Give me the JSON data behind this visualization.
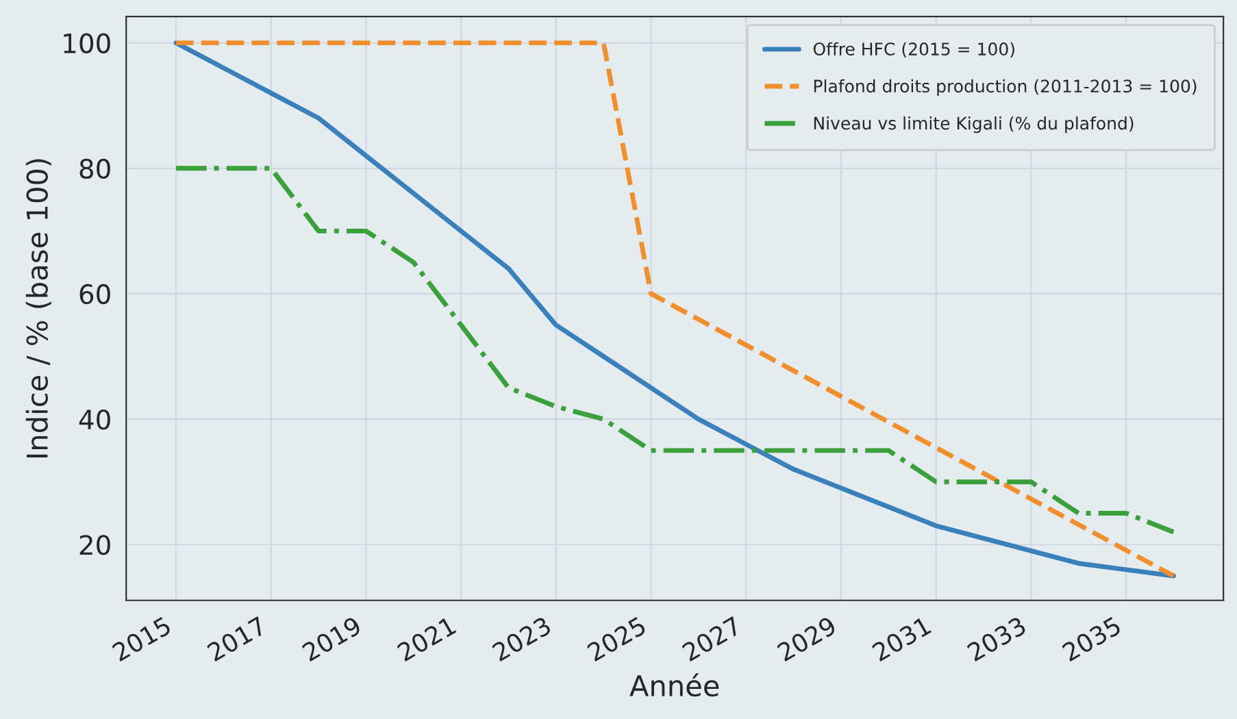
{
  "chart_data": {
    "type": "line",
    "xlabel": "Année",
    "ylabel": "Indice / % (base 100)",
    "x": [
      2015,
      2016,
      2017,
      2018,
      2019,
      2020,
      2021,
      2022,
      2023,
      2024,
      2025,
      2026,
      2027,
      2028,
      2029,
      2030,
      2031,
      2032,
      2033,
      2034,
      2035,
      2036
    ],
    "series": [
      {
        "name": "Offre HFC (2015 = 100)",
        "color": "#3a80ba",
        "line_style": "solid",
        "values": [
          100,
          96,
          92,
          88,
          82,
          76,
          70,
          64,
          55,
          50,
          45,
          40,
          36,
          32,
          29,
          26,
          23,
          21,
          19,
          17,
          16,
          15
        ]
      },
      {
        "name": "Plafond droits production (2011-2013 = 100)",
        "color": "#f28e2b",
        "line_style": "dashed",
        "x": [
          2015,
          2024,
          2025,
          2036
        ],
        "values": [
          100,
          100,
          60,
          15
        ]
      },
      {
        "name": "Niveau vs limite Kigali (% du plafond)",
        "color": "#3aa03a",
        "line_style": "dashdot",
        "values": [
          80,
          80,
          80,
          70,
          70,
          65,
          55,
          45,
          42,
          40,
          35,
          35,
          35,
          35,
          35,
          35,
          30,
          30,
          30,
          25,
          25,
          22
        ]
      }
    ],
    "xlim": [
      2013.95,
      2037.05
    ],
    "ylim": [
      11.1,
      104.2
    ],
    "xticks": [
      2015,
      2017,
      2019,
      2021,
      2023,
      2025,
      2027,
      2029,
      2031,
      2033,
      2035
    ],
    "yticks": [
      20,
      40,
      60,
      80,
      100
    ],
    "grid": true,
    "legend": "top right"
  }
}
